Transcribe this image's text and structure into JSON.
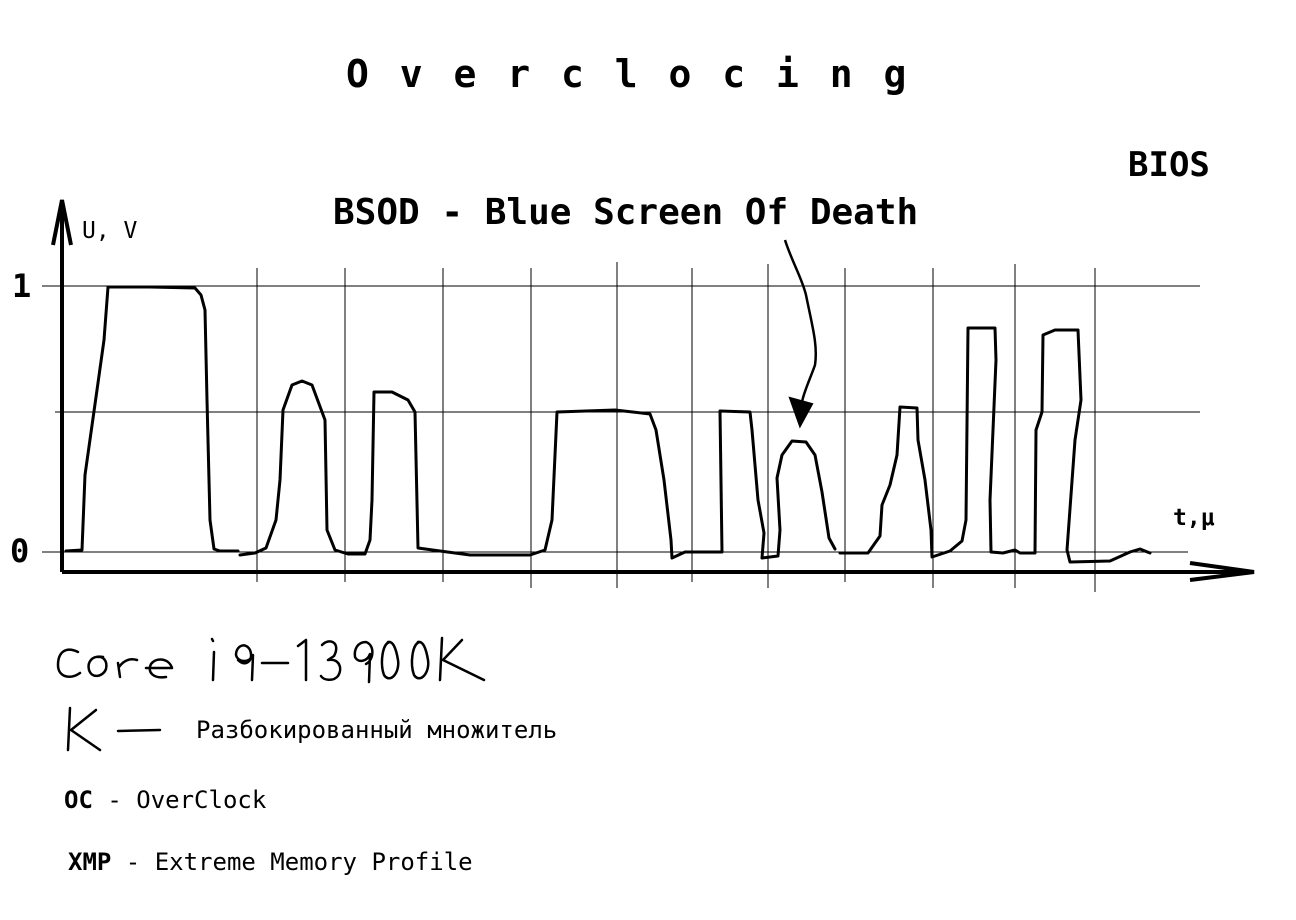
{
  "title": "O v e r c l o c i n g",
  "bios_label": "BIOS",
  "bsod_label": "BSOD - Blue Screen Of Death",
  "chart_data": {
    "type": "line",
    "ylabel": "U, V",
    "xlabel": "t,μ",
    "y_ticks": [
      "1",
      "0"
    ],
    "grid": true
  },
  "cpu_handwritten": "Core i9-13900K",
  "k_handwritten": "K",
  "k_description": "Разбокированный множитель",
  "definitions": [
    {
      "abbr": "OC",
      "text": " - OverClock"
    },
    {
      "abbr": "XMP",
      "text": " - Extreme Memory Profile"
    }
  ]
}
